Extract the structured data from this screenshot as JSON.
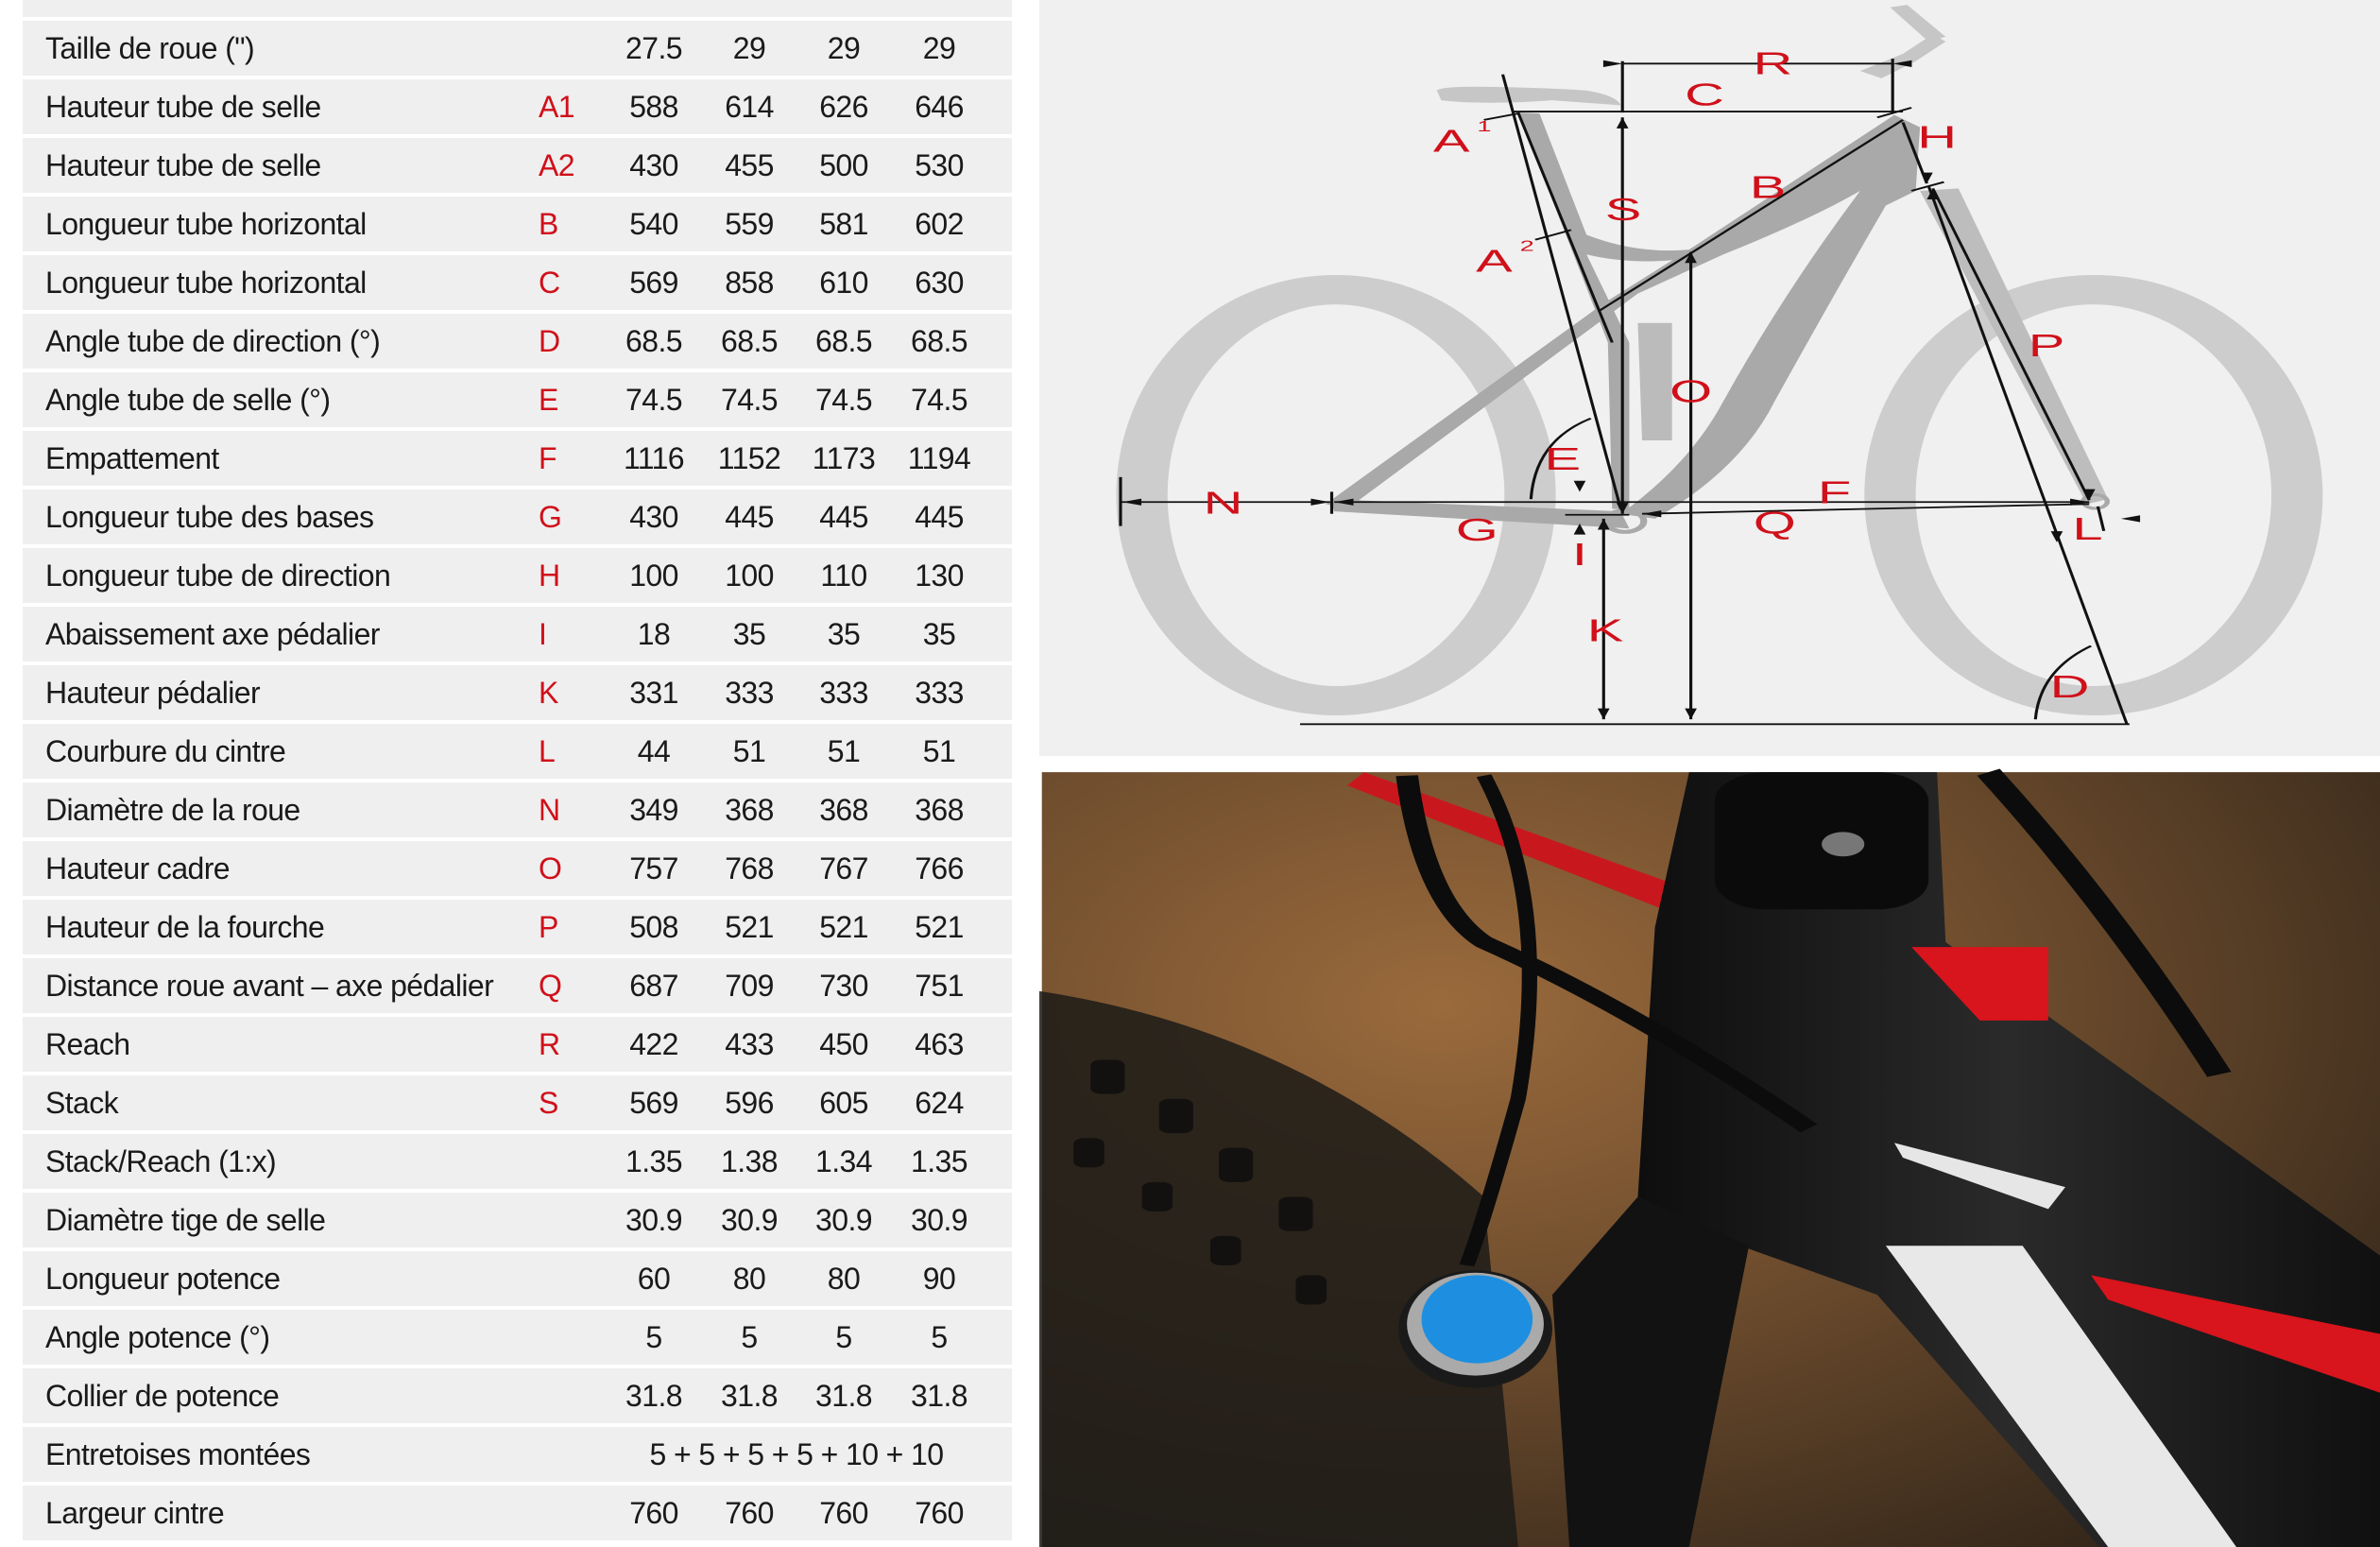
{
  "table": {
    "rows": [
      {
        "label": "Taille de roue (\")",
        "code": "",
        "values": [
          "27.5",
          "29",
          "29",
          "29"
        ]
      },
      {
        "label": "Hauteur tube de selle",
        "code": "A1",
        "values": [
          "588",
          "614",
          "626",
          "646"
        ]
      },
      {
        "label": "Hauteur tube de selle",
        "code": "A2",
        "values": [
          "430",
          "455",
          "500",
          "530"
        ]
      },
      {
        "label": "Longueur tube horizontal",
        "code": "B",
        "values": [
          "540",
          "559",
          "581",
          "602"
        ]
      },
      {
        "label": "Longueur tube horizontal",
        "code": "C",
        "values": [
          "569",
          "858",
          "610",
          "630"
        ]
      },
      {
        "label": "Angle tube de direction (°)",
        "code": "D",
        "values": [
          "68.5",
          "68.5",
          "68.5",
          "68.5"
        ]
      },
      {
        "label": "Angle tube de selle (°)",
        "code": "E",
        "values": [
          "74.5",
          "74.5",
          "74.5",
          "74.5"
        ]
      },
      {
        "label": "Empattement",
        "code": "F",
        "values": [
          "1116",
          "1152",
          "1173",
          "1194"
        ]
      },
      {
        "label": "Longueur tube des bases",
        "code": "G",
        "values": [
          "430",
          "445",
          "445",
          "445"
        ]
      },
      {
        "label": "Longueur tube de direction",
        "code": "H",
        "values": [
          "100",
          "100",
          "110",
          "130"
        ]
      },
      {
        "label": "Abaissement axe pédalier",
        "code": "I",
        "values": [
          "18",
          "35",
          "35",
          "35"
        ]
      },
      {
        "label": "Hauteur pédalier",
        "code": "K",
        "values": [
          "331",
          "333",
          "333",
          "333"
        ]
      },
      {
        "label": "Courbure du cintre",
        "code": "L",
        "values": [
          "44",
          "51",
          "51",
          "51"
        ]
      },
      {
        "label": "Diamètre de la roue",
        "code": "N",
        "values": [
          "349",
          "368",
          "368",
          "368"
        ]
      },
      {
        "label": "Hauteur cadre",
        "code": "O",
        "values": [
          "757",
          "768",
          "767",
          "766"
        ]
      },
      {
        "label": "Hauteur de la fourche",
        "code": "P",
        "values": [
          "508",
          "521",
          "521",
          "521"
        ]
      },
      {
        "label": "Distance roue avant – axe pédalier",
        "code": "Q",
        "values": [
          "687",
          "709",
          "730",
          "751"
        ]
      },
      {
        "label": "Reach",
        "code": "R",
        "values": [
          "422",
          "433",
          "450",
          "463"
        ]
      },
      {
        "label": "Stack",
        "code": "S",
        "values": [
          "569",
          "596",
          "605",
          "624"
        ]
      },
      {
        "label": "Stack/Reach (1:x)",
        "code": "",
        "values": [
          "1.35",
          "1.38",
          "1.34",
          "1.35"
        ]
      },
      {
        "label": "Diamètre tige de selle",
        "code": "",
        "values": [
          "30.9",
          "30.9",
          "30.9",
          "30.9"
        ]
      },
      {
        "label": "Longueur potence",
        "code": "",
        "values": [
          "60",
          "80",
          "80",
          "90"
        ]
      },
      {
        "label": "Angle potence (°)",
        "code": "",
        "values": [
          "5",
          "5",
          "5",
          "5"
        ]
      },
      {
        "label": "Collier de potence",
        "code": "",
        "values": [
          "31.8",
          "31.8",
          "31.8",
          "31.8"
        ]
      },
      {
        "label": "Entretoises montées",
        "code": "",
        "merged": "5 + 5 + 5 + 5 + 10 + 10"
      },
      {
        "label": "Largeur cintre",
        "code": "",
        "values": [
          "760",
          "760",
          "760",
          "760"
        ]
      }
    ]
  },
  "diagram": {
    "labels": {
      "R": "R",
      "C": "C",
      "A1": "A",
      "A1_sup": "1",
      "H": "H",
      "B": "B",
      "S": "S",
      "A2": "A",
      "A2_sup": "2",
      "P": "P",
      "O": "O",
      "E": "E",
      "N": "N",
      "F": "F",
      "G": "G",
      "Q": "Q",
      "L": "L",
      "I": "I",
      "K": "K",
      "D": "D"
    },
    "colors": {
      "label": "#d0101a",
      "frame": "#a9a9a9",
      "wheel": "#cdcdcd",
      "background": "#f0f0f0",
      "line": "#111111"
    }
  },
  "photo": {
    "colors": {
      "frame": "#141414",
      "accent_red": "#d8141c",
      "fork_cap": "#1e8fe0",
      "background": "#6a4a2c"
    }
  }
}
